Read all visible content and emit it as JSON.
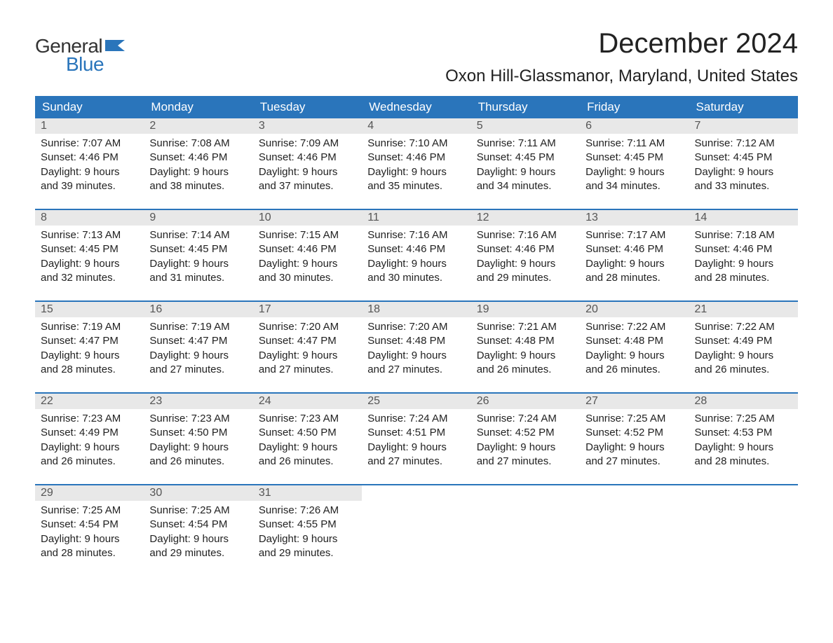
{
  "logo": {
    "word1": "General",
    "word2": "Blue",
    "flag_color": "#2a75bb"
  },
  "title": "December 2024",
  "location": "Oxon Hill-Glassmanor, Maryland, United States",
  "colors": {
    "header_bg": "#2a75bb",
    "header_text": "#ffffff",
    "daynum_bg": "#e8e8e8",
    "daynum_text": "#555555",
    "body_text": "#222222",
    "rule": "#2a75bb"
  },
  "weekdays": [
    "Sunday",
    "Monday",
    "Tuesday",
    "Wednesday",
    "Thursday",
    "Friday",
    "Saturday"
  ],
  "weeks": [
    [
      {
        "n": "1",
        "sr": "Sunrise: 7:07 AM",
        "ss": "Sunset: 4:46 PM",
        "d1": "Daylight: 9 hours",
        "d2": "and 39 minutes."
      },
      {
        "n": "2",
        "sr": "Sunrise: 7:08 AM",
        "ss": "Sunset: 4:46 PM",
        "d1": "Daylight: 9 hours",
        "d2": "and 38 minutes."
      },
      {
        "n": "3",
        "sr": "Sunrise: 7:09 AM",
        "ss": "Sunset: 4:46 PM",
        "d1": "Daylight: 9 hours",
        "d2": "and 37 minutes."
      },
      {
        "n": "4",
        "sr": "Sunrise: 7:10 AM",
        "ss": "Sunset: 4:46 PM",
        "d1": "Daylight: 9 hours",
        "d2": "and 35 minutes."
      },
      {
        "n": "5",
        "sr": "Sunrise: 7:11 AM",
        "ss": "Sunset: 4:45 PM",
        "d1": "Daylight: 9 hours",
        "d2": "and 34 minutes."
      },
      {
        "n": "6",
        "sr": "Sunrise: 7:11 AM",
        "ss": "Sunset: 4:45 PM",
        "d1": "Daylight: 9 hours",
        "d2": "and 34 minutes."
      },
      {
        "n": "7",
        "sr": "Sunrise: 7:12 AM",
        "ss": "Sunset: 4:45 PM",
        "d1": "Daylight: 9 hours",
        "d2": "and 33 minutes."
      }
    ],
    [
      {
        "n": "8",
        "sr": "Sunrise: 7:13 AM",
        "ss": "Sunset: 4:45 PM",
        "d1": "Daylight: 9 hours",
        "d2": "and 32 minutes."
      },
      {
        "n": "9",
        "sr": "Sunrise: 7:14 AM",
        "ss": "Sunset: 4:45 PM",
        "d1": "Daylight: 9 hours",
        "d2": "and 31 minutes."
      },
      {
        "n": "10",
        "sr": "Sunrise: 7:15 AM",
        "ss": "Sunset: 4:46 PM",
        "d1": "Daylight: 9 hours",
        "d2": "and 30 minutes."
      },
      {
        "n": "11",
        "sr": "Sunrise: 7:16 AM",
        "ss": "Sunset: 4:46 PM",
        "d1": "Daylight: 9 hours",
        "d2": "and 30 minutes."
      },
      {
        "n": "12",
        "sr": "Sunrise: 7:16 AM",
        "ss": "Sunset: 4:46 PM",
        "d1": "Daylight: 9 hours",
        "d2": "and 29 minutes."
      },
      {
        "n": "13",
        "sr": "Sunrise: 7:17 AM",
        "ss": "Sunset: 4:46 PM",
        "d1": "Daylight: 9 hours",
        "d2": "and 28 minutes."
      },
      {
        "n": "14",
        "sr": "Sunrise: 7:18 AM",
        "ss": "Sunset: 4:46 PM",
        "d1": "Daylight: 9 hours",
        "d2": "and 28 minutes."
      }
    ],
    [
      {
        "n": "15",
        "sr": "Sunrise: 7:19 AM",
        "ss": "Sunset: 4:47 PM",
        "d1": "Daylight: 9 hours",
        "d2": "and 28 minutes."
      },
      {
        "n": "16",
        "sr": "Sunrise: 7:19 AM",
        "ss": "Sunset: 4:47 PM",
        "d1": "Daylight: 9 hours",
        "d2": "and 27 minutes."
      },
      {
        "n": "17",
        "sr": "Sunrise: 7:20 AM",
        "ss": "Sunset: 4:47 PM",
        "d1": "Daylight: 9 hours",
        "d2": "and 27 minutes."
      },
      {
        "n": "18",
        "sr": "Sunrise: 7:20 AM",
        "ss": "Sunset: 4:48 PM",
        "d1": "Daylight: 9 hours",
        "d2": "and 27 minutes."
      },
      {
        "n": "19",
        "sr": "Sunrise: 7:21 AM",
        "ss": "Sunset: 4:48 PM",
        "d1": "Daylight: 9 hours",
        "d2": "and 26 minutes."
      },
      {
        "n": "20",
        "sr": "Sunrise: 7:22 AM",
        "ss": "Sunset: 4:48 PM",
        "d1": "Daylight: 9 hours",
        "d2": "and 26 minutes."
      },
      {
        "n": "21",
        "sr": "Sunrise: 7:22 AM",
        "ss": "Sunset: 4:49 PM",
        "d1": "Daylight: 9 hours",
        "d2": "and 26 minutes."
      }
    ],
    [
      {
        "n": "22",
        "sr": "Sunrise: 7:23 AM",
        "ss": "Sunset: 4:49 PM",
        "d1": "Daylight: 9 hours",
        "d2": "and 26 minutes."
      },
      {
        "n": "23",
        "sr": "Sunrise: 7:23 AM",
        "ss": "Sunset: 4:50 PM",
        "d1": "Daylight: 9 hours",
        "d2": "and 26 minutes."
      },
      {
        "n": "24",
        "sr": "Sunrise: 7:23 AM",
        "ss": "Sunset: 4:50 PM",
        "d1": "Daylight: 9 hours",
        "d2": "and 26 minutes."
      },
      {
        "n": "25",
        "sr": "Sunrise: 7:24 AM",
        "ss": "Sunset: 4:51 PM",
        "d1": "Daylight: 9 hours",
        "d2": "and 27 minutes."
      },
      {
        "n": "26",
        "sr": "Sunrise: 7:24 AM",
        "ss": "Sunset: 4:52 PM",
        "d1": "Daylight: 9 hours",
        "d2": "and 27 minutes."
      },
      {
        "n": "27",
        "sr": "Sunrise: 7:25 AM",
        "ss": "Sunset: 4:52 PM",
        "d1": "Daylight: 9 hours",
        "d2": "and 27 minutes."
      },
      {
        "n": "28",
        "sr": "Sunrise: 7:25 AM",
        "ss": "Sunset: 4:53 PM",
        "d1": "Daylight: 9 hours",
        "d2": "and 28 minutes."
      }
    ],
    [
      {
        "n": "29",
        "sr": "Sunrise: 7:25 AM",
        "ss": "Sunset: 4:54 PM",
        "d1": "Daylight: 9 hours",
        "d2": "and 28 minutes."
      },
      {
        "n": "30",
        "sr": "Sunrise: 7:25 AM",
        "ss": "Sunset: 4:54 PM",
        "d1": "Daylight: 9 hours",
        "d2": "and 29 minutes."
      },
      {
        "n": "31",
        "sr": "Sunrise: 7:26 AM",
        "ss": "Sunset: 4:55 PM",
        "d1": "Daylight: 9 hours",
        "d2": "and 29 minutes."
      },
      null,
      null,
      null,
      null
    ]
  ]
}
